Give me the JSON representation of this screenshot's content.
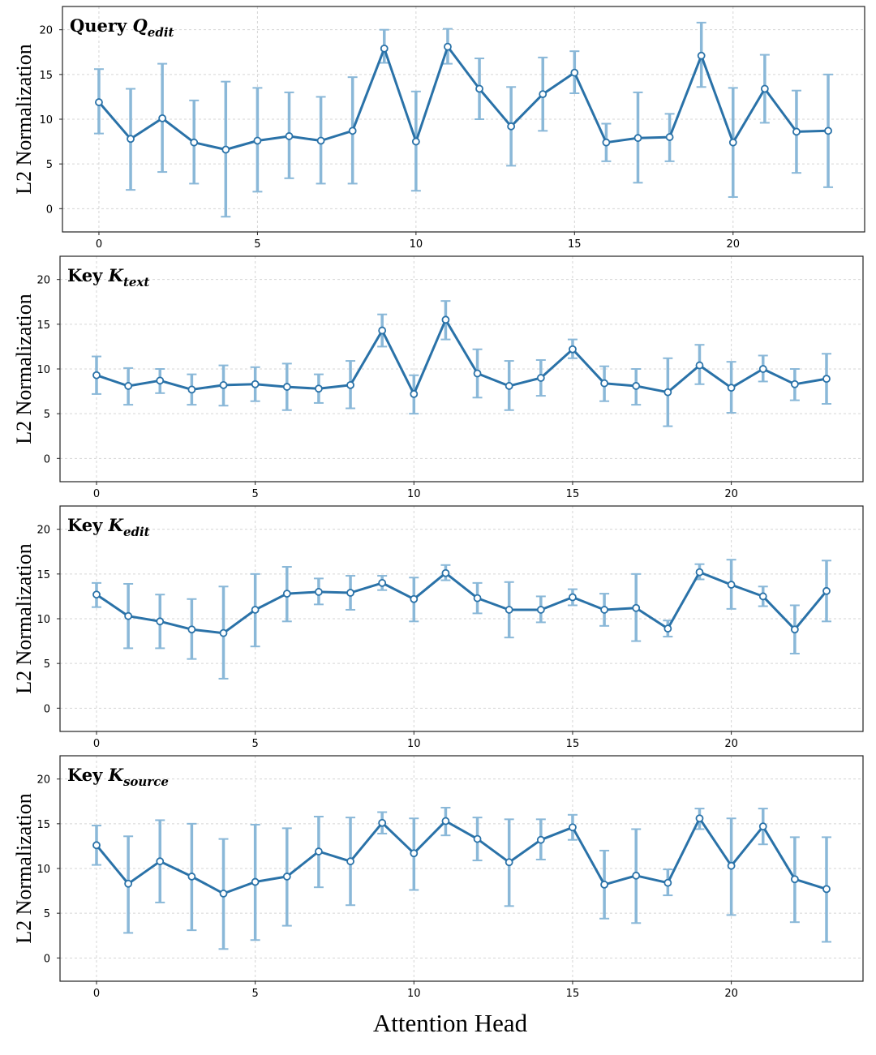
{
  "figure": {
    "xlabel": "Attention Head",
    "colors": {
      "line": "#2a72a8",
      "errorbar": "#8ab8d8",
      "grid": "#d5d5d5",
      "frame": "#222222"
    }
  },
  "chart_data": [
    {
      "type": "line",
      "title_prefix": "Query",
      "title_symbol": "Q",
      "title_subscript": "edit",
      "xlabel": "",
      "ylabel": "L2 Normalization",
      "x": [
        0,
        1,
        2,
        3,
        4,
        5,
        6,
        7,
        8,
        9,
        10,
        11,
        12,
        13,
        14,
        15,
        16,
        17,
        18,
        19,
        20,
        21,
        22,
        23
      ],
      "values": [
        11.9,
        7.8,
        10.1,
        7.4,
        6.6,
        7.6,
        8.1,
        7.6,
        8.7,
        17.9,
        7.5,
        18.1,
        13.4,
        9.2,
        12.8,
        15.2,
        7.4,
        7.9,
        8.0,
        17.1,
        7.4,
        13.4,
        8.6,
        8.7
      ],
      "err_low": [
        8.4,
        2.1,
        4.1,
        2.8,
        -0.9,
        1.9,
        3.4,
        2.8,
        2.8,
        16.3,
        2.0,
        16.2,
        10.0,
        4.8,
        8.7,
        12.9,
        5.3,
        2.9,
        5.3,
        13.6,
        1.3,
        9.6,
        4.0,
        2.4
      ],
      "err_high": [
        15.6,
        13.4,
        16.2,
        12.1,
        14.2,
        13.5,
        13.0,
        12.5,
        14.7,
        20.0,
        13.1,
        20.1,
        16.8,
        13.6,
        16.9,
        17.6,
        9.5,
        13.0,
        10.6,
        20.8,
        13.5,
        17.2,
        13.2,
        15.0
      ],
      "xticks": [
        "0",
        "5",
        "10",
        "15",
        "20"
      ],
      "yticks": [
        "0",
        "5",
        "10",
        "15",
        "20"
      ],
      "xlim": [
        -1.15,
        24.15
      ],
      "ylim": [
        -2.6,
        22.6
      ],
      "grid": true
    },
    {
      "type": "line",
      "title_prefix": "Key",
      "title_symbol": "K",
      "title_subscript": "text",
      "xlabel": "",
      "ylabel": "L2 Normalization",
      "x": [
        0,
        1,
        2,
        3,
        4,
        5,
        6,
        7,
        8,
        9,
        10,
        11,
        12,
        13,
        14,
        15,
        16,
        17,
        18,
        19,
        20,
        21,
        22,
        23
      ],
      "values": [
        9.3,
        8.1,
        8.7,
        7.7,
        8.2,
        8.3,
        8.0,
        7.8,
        8.2,
        14.3,
        7.2,
        15.5,
        9.5,
        8.1,
        9.0,
        12.2,
        8.4,
        8.1,
        7.4,
        10.4,
        7.9,
        10.0,
        8.3,
        8.9
      ],
      "err_low": [
        7.2,
        6.0,
        7.3,
        6.0,
        5.9,
        6.4,
        5.4,
        6.2,
        5.6,
        12.5,
        5.0,
        13.3,
        6.8,
        5.4,
        7.0,
        11.2,
        6.4,
        6.0,
        3.6,
        8.3,
        5.1,
        8.6,
        6.5,
        6.1
      ],
      "err_high": [
        11.4,
        10.1,
        10.0,
        9.4,
        10.4,
        10.2,
        10.6,
        9.4,
        10.9,
        16.1,
        9.3,
        17.6,
        12.2,
        10.9,
        11.0,
        13.3,
        10.3,
        10.0,
        11.2,
        12.7,
        10.8,
        11.5,
        10.0,
        11.7
      ],
      "xticks": [
        "0",
        "5",
        "10",
        "15",
        "20"
      ],
      "yticks": [
        "0",
        "5",
        "10",
        "15",
        "20"
      ],
      "xlim": [
        -1.15,
        24.15
      ],
      "ylim": [
        -2.6,
        22.6
      ],
      "grid": true
    },
    {
      "type": "line",
      "title_prefix": "Key",
      "title_symbol": "K",
      "title_subscript": "edit",
      "xlabel": "",
      "ylabel": "L2 Normalization",
      "x": [
        0,
        1,
        2,
        3,
        4,
        5,
        6,
        7,
        8,
        9,
        10,
        11,
        12,
        13,
        14,
        15,
        16,
        17,
        18,
        19,
        20,
        21,
        22,
        23
      ],
      "values": [
        12.7,
        10.3,
        9.7,
        8.8,
        8.4,
        11.0,
        12.8,
        13.0,
        12.9,
        14.0,
        12.2,
        15.1,
        12.3,
        11.0,
        11.0,
        12.4,
        11.0,
        11.2,
        8.9,
        15.2,
        13.8,
        12.5,
        8.8,
        13.1
      ],
      "err_low": [
        11.3,
        6.7,
        6.7,
        5.5,
        3.3,
        6.9,
        9.7,
        11.6,
        11.0,
        13.2,
        9.7,
        14.3,
        10.6,
        7.9,
        9.6,
        11.5,
        9.2,
        7.5,
        8.0,
        14.4,
        11.1,
        11.4,
        6.1,
        9.7
      ],
      "err_high": [
        14.0,
        13.9,
        12.7,
        12.2,
        13.6,
        15.0,
        15.8,
        14.5,
        14.8,
        14.8,
        14.6,
        16.0,
        14.0,
        14.1,
        12.5,
        13.3,
        12.8,
        15.0,
        9.8,
        16.1,
        16.6,
        13.6,
        11.5,
        16.5
      ],
      "xticks": [
        "0",
        "5",
        "10",
        "15",
        "20"
      ],
      "yticks": [
        "0",
        "5",
        "10",
        "15",
        "20"
      ],
      "xlim": [
        -1.15,
        24.15
      ],
      "ylim": [
        -2.6,
        22.6
      ],
      "grid": true
    },
    {
      "type": "line",
      "title_prefix": "Key",
      "title_symbol": "K",
      "title_subscript": "source",
      "xlabel": "",
      "ylabel": "L2 Normalization",
      "x": [
        0,
        1,
        2,
        3,
        4,
        5,
        6,
        7,
        8,
        9,
        10,
        11,
        12,
        13,
        14,
        15,
        16,
        17,
        18,
        19,
        20,
        21,
        22,
        23
      ],
      "values": [
        12.6,
        8.3,
        10.8,
        9.1,
        7.2,
        8.5,
        9.1,
        11.9,
        10.8,
        15.1,
        11.7,
        15.3,
        13.3,
        10.7,
        13.2,
        14.6,
        8.2,
        9.2,
        8.4,
        15.6,
        10.3,
        14.7,
        8.8,
        7.7
      ],
      "err_low": [
        10.4,
        2.8,
        6.2,
        3.1,
        1.0,
        2.0,
        3.6,
        7.9,
        5.9,
        13.9,
        7.6,
        13.7,
        10.9,
        5.8,
        11.0,
        13.2,
        4.4,
        3.9,
        7.0,
        14.4,
        4.8,
        12.7,
        4.0,
        1.8
      ],
      "err_high": [
        14.8,
        13.6,
        15.4,
        15.0,
        13.3,
        14.9,
        14.5,
        15.8,
        15.7,
        16.3,
        15.6,
        16.8,
        15.7,
        15.5,
        15.5,
        16.0,
        12.0,
        14.4,
        9.9,
        16.7,
        15.6,
        16.7,
        13.5,
        13.5
      ],
      "xticks": [
        "0",
        "5",
        "10",
        "15",
        "20"
      ],
      "yticks": [
        "0",
        "5",
        "10",
        "15",
        "20"
      ],
      "xlim": [
        -1.15,
        24.15
      ],
      "ylim": [
        -2.6,
        22.6
      ],
      "grid": true
    }
  ]
}
